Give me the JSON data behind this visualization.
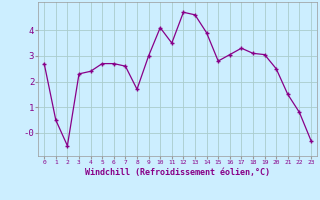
{
  "x": [
    0,
    1,
    2,
    3,
    4,
    5,
    6,
    7,
    8,
    9,
    10,
    11,
    12,
    13,
    14,
    15,
    16,
    17,
    18,
    19,
    20,
    21,
    22,
    23
  ],
  "y": [
    2.7,
    0.5,
    -0.5,
    2.3,
    2.4,
    2.7,
    2.7,
    2.6,
    1.7,
    3.0,
    4.1,
    3.5,
    4.7,
    4.6,
    3.9,
    2.8,
    3.05,
    3.3,
    3.1,
    3.05,
    2.5,
    1.5,
    0.8,
    -0.3
  ],
  "line_color": "#880088",
  "marker": "+",
  "bg_color": "#cceeff",
  "grid_color": "#aacccc",
  "xlabel": "Windchill (Refroidissement éolien,°C)",
  "xlabel_color": "#880088",
  "tick_color": "#880088",
  "xlim": [
    -0.5,
    23.5
  ],
  "ylim": [
    -0.9,
    5.1
  ],
  "ytick_vals": [
    0,
    1,
    2,
    3,
    4
  ],
  "ytick_labels": [
    "-0",
    "1",
    "2",
    "3",
    "4"
  ]
}
